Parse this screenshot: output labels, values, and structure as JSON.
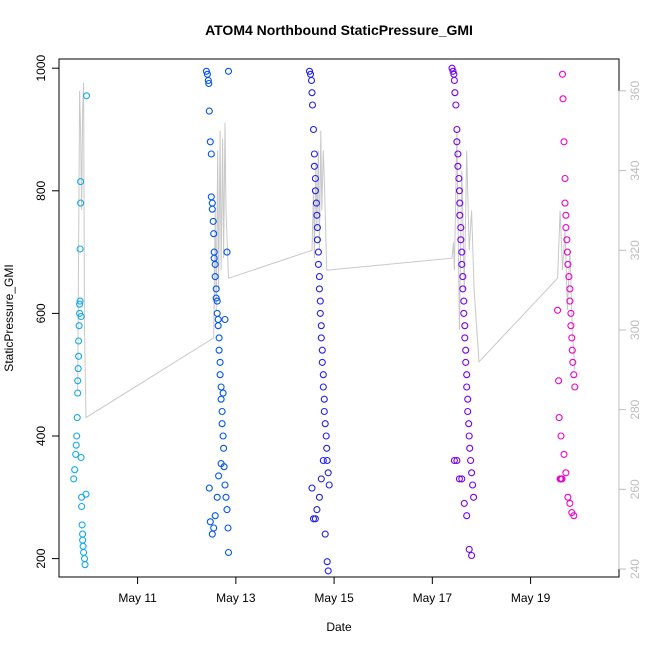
{
  "chart_data": {
    "type": "scatter",
    "title": "ATOM4 Northbound StaticPressure_GMI",
    "xlabel": "Date",
    "ylabel": "StaticPressure_GMI",
    "xlim": [
      9.4,
      20.8
    ],
    "ylim": [
      170,
      1015
    ],
    "y2lim": [
      238,
      368
    ],
    "x_ticks": [
      11,
      13,
      15,
      17,
      19
    ],
    "x_tick_labels": [
      "May 11",
      "May 13",
      "May 15",
      "May 17",
      "May 19"
    ],
    "y_ticks": [
      200,
      400,
      600,
      800,
      1000
    ],
    "y2_ticks": [
      240,
      260,
      280,
      300,
      320,
      340,
      360
    ],
    "point_colors": [
      "#11aaee",
      "#0055ee",
      "#2222ee",
      "#7700ee",
      "#ee00cc"
    ],
    "secondary_line": {
      "x": [
        9.78,
        9.8,
        9.82,
        9.84,
        9.86,
        9.88,
        9.9,
        9.92,
        9.95,
        12.55,
        12.58,
        12.6,
        12.63,
        12.65,
        12.68,
        12.7,
        12.73,
        12.75,
        12.78,
        12.8,
        12.85,
        14.55,
        14.58,
        14.6,
        14.63,
        14.65,
        14.68,
        14.7,
        14.73,
        14.75,
        14.78,
        14.8,
        14.85,
        17.4,
        17.43,
        17.45,
        17.5,
        17.55,
        17.6,
        17.65,
        17.7,
        17.75,
        17.8,
        17.85,
        17.95,
        19.55,
        19.6,
        19.65,
        19.7,
        19.75,
        19.8,
        19.85,
        19.9
      ],
      "y": [
        285,
        320,
        360,
        350,
        330,
        355,
        362,
        300,
        278,
        298,
        330,
        305,
        345,
        310,
        350,
        315,
        348,
        318,
        352,
        330,
        313,
        320,
        335,
        318,
        342,
        325,
        345,
        320,
        350,
        330,
        345,
        338,
        315,
        318,
        322,
        315,
        350,
        300,
        340,
        310,
        345,
        320,
        330,
        310,
        292,
        313,
        330,
        315,
        325,
        305,
        320,
        300,
        290
      ]
    },
    "series": [
      {
        "x": [
          9.7,
          9.72,
          9.74,
          9.75,
          9.76,
          9.77,
          9.78,
          9.78,
          9.79,
          9.8,
          9.8,
          9.81,
          9.82,
          9.82,
          9.83,
          9.83,
          9.84,
          9.84,
          9.85,
          9.85,
          9.86,
          9.86,
          9.87,
          9.88,
          9.88,
          9.89,
          9.9,
          9.92,
          9.93,
          9.95,
          9.96
        ],
        "y": [
          330,
          345,
          370,
          385,
          400,
          430,
          470,
          490,
          510,
          530,
          555,
          580,
          600,
          615,
          620,
          705,
          780,
          815,
          595,
          365,
          300,
          285,
          255,
          240,
          230,
          220,
          210,
          200,
          190,
          305,
          955
        ]
      },
      {
        "x": [
          12.4,
          12.42,
          12.44,
          12.45,
          12.46,
          12.48,
          12.5,
          12.5,
          12.52,
          12.52,
          12.54,
          12.55,
          12.56,
          12.56,
          12.58,
          12.58,
          12.6,
          12.6,
          12.62,
          12.62,
          12.64,
          12.64,
          12.66,
          12.66,
          12.68,
          12.68,
          12.7,
          12.7,
          12.72,
          12.72,
          12.74,
          12.75,
          12.76,
          12.78,
          12.8,
          12.82,
          12.84,
          12.85,
          12.46,
          12.48,
          12.52,
          12.55,
          12.58,
          12.62,
          12.65,
          12.7,
          12.74,
          12.78,
          12.82,
          12.85
        ],
        "y": [
          995,
          990,
          980,
          975,
          930,
          880,
          860,
          790,
          780,
          770,
          750,
          730,
          700,
          690,
          680,
          660,
          640,
          625,
          620,
          600,
          590,
          580,
          560,
          540,
          520,
          500,
          480,
          460,
          440,
          420,
          400,
          380,
          350,
          320,
          300,
          280,
          250,
          210,
          315,
          260,
          240,
          250,
          270,
          300,
          335,
          355,
          470,
          590,
          700,
          995
        ]
      },
      {
        "x": [
          14.5,
          14.52,
          14.54,
          14.55,
          14.56,
          14.58,
          14.6,
          14.6,
          14.62,
          14.62,
          14.64,
          14.65,
          14.66,
          14.66,
          14.68,
          14.68,
          14.7,
          14.7,
          14.72,
          14.72,
          14.74,
          14.74,
          14.76,
          14.76,
          14.78,
          14.78,
          14.8,
          14.8,
          14.82,
          14.84,
          14.85,
          14.86,
          14.88,
          14.9,
          14.55,
          14.58,
          14.62,
          14.65,
          14.7,
          14.74,
          14.78,
          14.82,
          14.86,
          14.88
        ],
        "y": [
          995,
          990,
          980,
          960,
          940,
          900,
          860,
          840,
          820,
          800,
          780,
          760,
          740,
          720,
          700,
          680,
          660,
          640,
          620,
          600,
          580,
          560,
          540,
          520,
          500,
          480,
          460,
          440,
          420,
          400,
          380,
          360,
          340,
          320,
          315,
          265,
          265,
          280,
          300,
          330,
          360,
          240,
          195,
          180
        ]
      },
      {
        "x": [
          17.4,
          17.42,
          17.44,
          17.45,
          17.46,
          17.48,
          17.5,
          17.5,
          17.52,
          17.52,
          17.54,
          17.55,
          17.56,
          17.56,
          17.58,
          17.58,
          17.6,
          17.6,
          17.62,
          17.62,
          17.64,
          17.64,
          17.66,
          17.66,
          17.68,
          17.68,
          17.7,
          17.7,
          17.72,
          17.72,
          17.74,
          17.75,
          17.76,
          17.78,
          17.8,
          17.82,
          17.84,
          17.45,
          17.5,
          17.55,
          17.6,
          17.65,
          17.7,
          17.75,
          17.8
        ],
        "y": [
          1000,
          995,
          990,
          980,
          960,
          940,
          900,
          880,
          860,
          840,
          820,
          800,
          780,
          760,
          740,
          720,
          700,
          680,
          660,
          640,
          620,
          600,
          580,
          560,
          540,
          520,
          500,
          480,
          460,
          440,
          420,
          400,
          380,
          360,
          340,
          320,
          300,
          360,
          360,
          330,
          330,
          290,
          270,
          215,
          205
        ]
      },
      {
        "x": [
          19.55,
          19.57,
          19.6,
          19.62,
          19.64,
          19.65,
          19.66,
          19.68,
          19.7,
          19.7,
          19.72,
          19.72,
          19.74,
          19.75,
          19.76,
          19.78,
          19.8,
          19.8,
          19.82,
          19.82,
          19.84,
          19.85,
          19.86,
          19.88,
          19.9,
          19.58,
          19.62,
          19.68,
          19.72,
          19.76,
          19.8,
          19.84,
          19.88
        ],
        "y": [
          605,
          490,
          330,
          330,
          330,
          990,
          950,
          880,
          820,
          780,
          760,
          740,
          720,
          700,
          680,
          660,
          640,
          620,
          600,
          580,
          560,
          540,
          520,
          500,
          480,
          430,
          400,
          370,
          340,
          300,
          290,
          275,
          270
        ]
      }
    ]
  }
}
